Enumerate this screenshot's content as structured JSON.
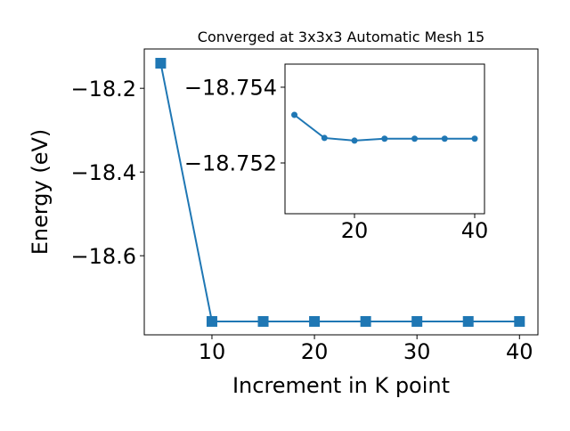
{
  "chart_data": [
    {
      "type": "line",
      "title": "Converged at 3x3x3 Automatic Mesh 15",
      "x_label": "Increment in K point",
      "y_label": "Energy (eV)",
      "x": [
        5,
        10,
        15,
        20,
        25,
        30,
        35,
        40
      ],
      "series": [
        {
          "color": "#1f77b4",
          "marker": "square",
          "values": [
            -18.14,
            -18.757,
            -18.757,
            -18.757,
            -18.757,
            -18.757,
            -18.757,
            -18.757
          ]
        }
      ],
      "xlim": [
        3.4,
        41.8
      ],
      "ylim": [
        -18.789,
        -18.106
      ],
      "xticks": [
        10,
        20,
        30,
        40
      ],
      "yticks": [
        {
          "value": -18.6,
          "label": "−18.6"
        },
        {
          "value": -18.4,
          "label": "−18.4"
        },
        {
          "value": -18.2,
          "label": "−18.2"
        }
      ]
    },
    {
      "type": "line",
      "x": [
        10,
        15,
        20,
        25,
        30,
        35,
        40
      ],
      "series": [
        {
          "color": "#1f77b4",
          "marker": "circle",
          "values": [
            -18.75327,
            -18.75266,
            -18.75259,
            -18.75264,
            -18.75264,
            -18.75264,
            -18.75264
          ]
        }
      ],
      "xlim": [
        8.44,
        41.63
      ],
      "ylim": [
        -18.75066,
        -18.75461
      ],
      "xticks": [
        20,
        40
      ],
      "yticks": [
        {
          "value": -18.754,
          "label": "−18.754"
        },
        {
          "value": -18.752,
          "label": "−18.752"
        }
      ]
    }
  ]
}
